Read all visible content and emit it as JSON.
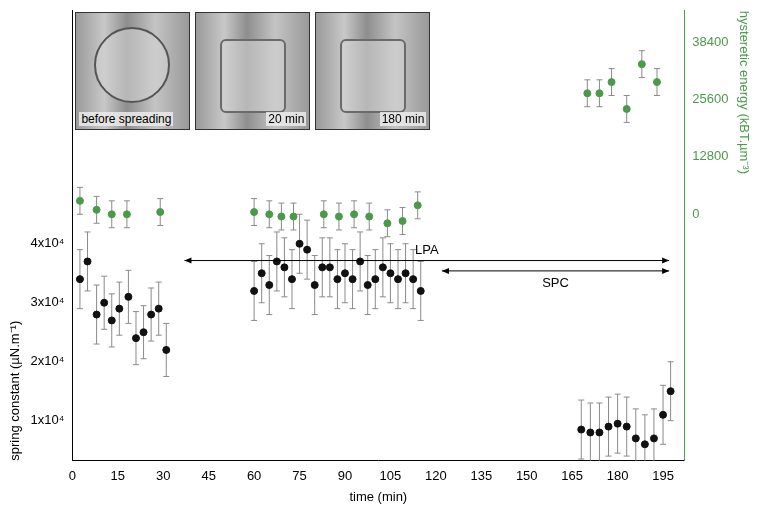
{
  "chart_data": {
    "type": "scatter",
    "x_label": "time (min)",
    "y_label": "spring constant (µN.m⁻¹)",
    "y2_label": "hysteretic energy (kBT.µm⁻³)",
    "xlim": [
      0,
      202
    ],
    "xticks": [
      0,
      15,
      30,
      45,
      60,
      75,
      90,
      105,
      120,
      135,
      150,
      165,
      180,
      195
    ],
    "ylim": [
      3200,
      79500
    ],
    "yticks": [
      {
        "value": 10000,
        "label": "1x10⁴"
      },
      {
        "value": 20000,
        "label": "2x10⁴"
      },
      {
        "value": 30000,
        "label": "3x10⁴"
      },
      {
        "value": 40000,
        "label": "4x10⁴"
      }
    ],
    "y2lim": [
      -55000,
      45400
    ],
    "y2ticks": [
      0,
      12800,
      25600,
      38400
    ],
    "grid": false,
    "series": [
      {
        "color": "#111111",
        "marker": "circle",
        "x": [
          2.5,
          5,
          8,
          10.5,
          13,
          15.5,
          18.5,
          21,
          23.5,
          26,
          28.5,
          31,
          60,
          62.5,
          65,
          67.5,
          70,
          72.5,
          75,
          77.5,
          80,
          82.5,
          85,
          87.5,
          90,
          92.5,
          95,
          97.5,
          100,
          102.5,
          105,
          107.5,
          110,
          112.5,
          115,
          168,
          171,
          174,
          177,
          180,
          183,
          186,
          189,
          192,
          195,
          197.5
        ],
        "values": [
          34000,
          37000,
          28000,
          30000,
          27000,
          29000,
          31000,
          24000,
          25000,
          28000,
          29000,
          22000,
          32000,
          35000,
          33000,
          37000,
          36000,
          34000,
          40000,
          39000,
          33000,
          36000,
          36000,
          34000,
          35000,
          34000,
          37000,
          33000,
          34000,
          36000,
          35000,
          34000,
          35000,
          34000,
          32000,
          8500,
          8000,
          8000,
          9000,
          9500,
          9000,
          7000,
          6000,
          7000,
          11000,
          15000
        ],
        "errors": [
          5000,
          5000,
          5000,
          4500,
          4500,
          4500,
          4500,
          4500,
          4500,
          4500,
          4500,
          4500,
          5000,
          5000,
          5000,
          5000,
          5000,
          5000,
          5000,
          5000,
          5000,
          5000,
          5000,
          5000,
          5000,
          5000,
          5000,
          5000,
          5000,
          5000,
          5000,
          5000,
          5000,
          5000,
          5000,
          5000,
          5000,
          5000,
          5000,
          5000,
          5000,
          5000,
          5000,
          5000,
          5000,
          5000
        ]
      },
      {
        "axis": "y2",
        "color": "#4a9a4a",
        "marker": "circle",
        "x": [
          2.5,
          8,
          13,
          18,
          29,
          60,
          65,
          69,
          73,
          83,
          88,
          93,
          98,
          104,
          109,
          114,
          170,
          174,
          178,
          183,
          188,
          193
        ],
        "values": [
          3000,
          1000,
          0,
          0,
          500,
          500,
          0,
          -500,
          -500,
          0,
          -500,
          0,
          -500,
          -2000,
          -1500,
          2000,
          27000,
          27000,
          29500,
          23500,
          33500,
          29500
        ],
        "errors": [
          3000,
          3000,
          3000,
          3000,
          3000,
          3000,
          3000,
          3000,
          3000,
          3000,
          3000,
          3000,
          3000,
          3000,
          3000,
          3000,
          3000,
          3000,
          3000,
          3000,
          3000,
          3000
        ]
      }
    ],
    "annotations": [
      {
        "text": "LPA",
        "from": 37,
        "to": 197
      },
      {
        "text": "SPC",
        "from": 122,
        "to": 197
      }
    ],
    "images": [
      {
        "label": "before spreading"
      },
      {
        "label": "20 min"
      },
      {
        "label": "180 min"
      }
    ]
  }
}
